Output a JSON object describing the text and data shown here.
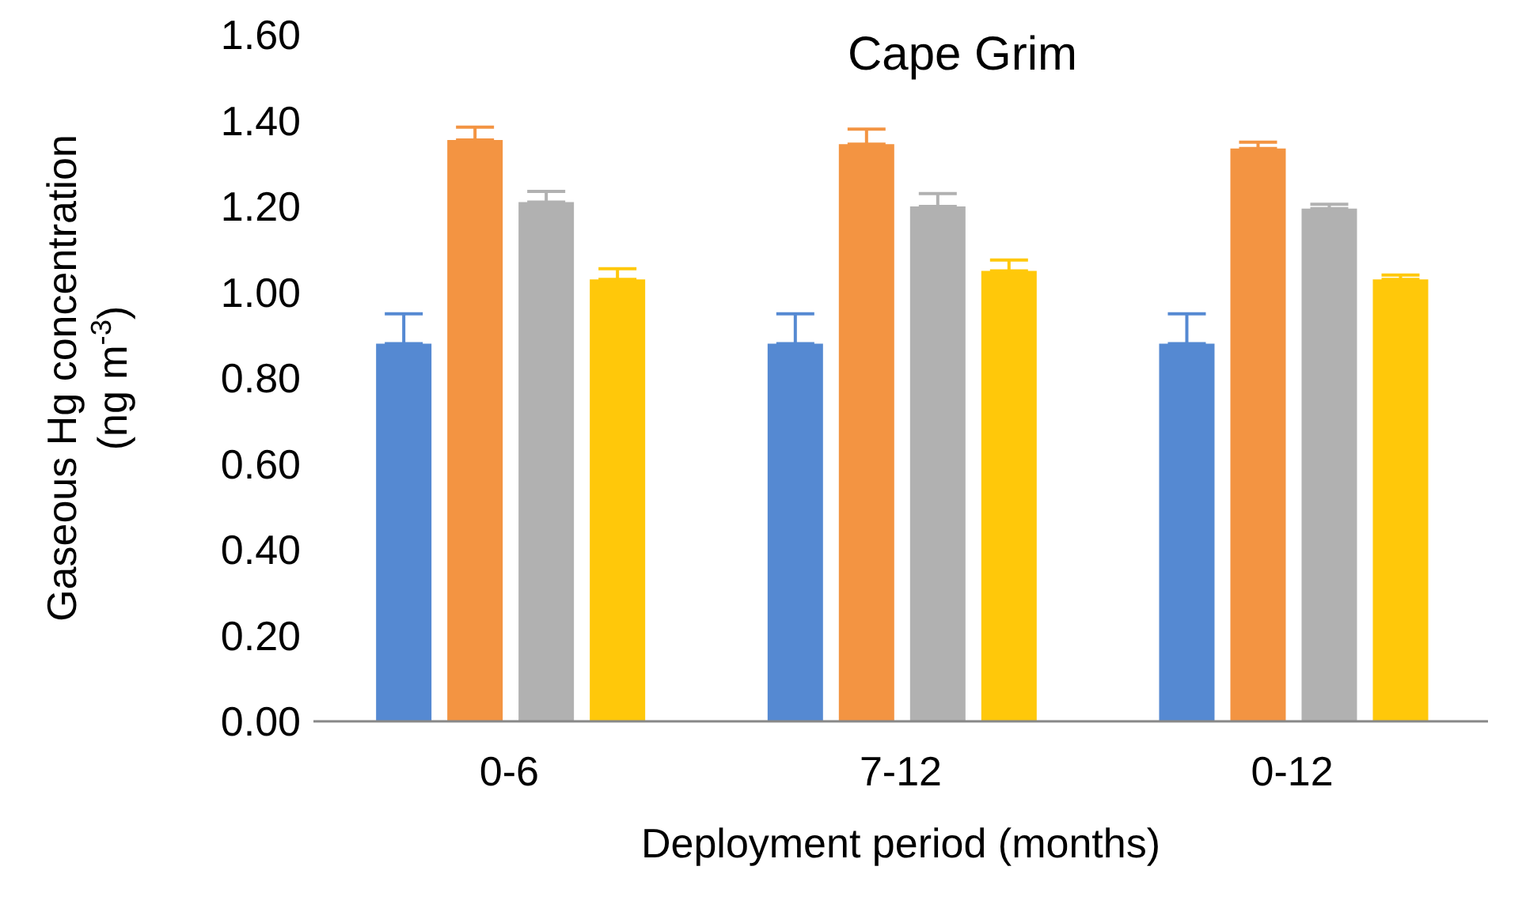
{
  "chart_data": {
    "type": "bar",
    "title": "Cape Grim",
    "xlabel": "Deployment period (months)",
    "ylabel": "Gaseous Hg concentration\n(ng m$^{-3}$)",
    "categories": [
      "0-6",
      "7-12",
      "0-12"
    ],
    "series": [
      {
        "color": "#5589d2",
        "values": [
          0.88,
          0.88,
          0.88
        ],
        "errors": [
          [
            0.88,
            0.95
          ],
          [
            0.88,
            0.95
          ],
          [
            0.88,
            0.95
          ]
        ]
      },
      {
        "color": "#f39442",
        "values": [
          1.355,
          1.345,
          1.335
        ],
        "errors": [
          [
            1.355,
            1.385
          ],
          [
            1.345,
            1.38
          ],
          [
            1.335,
            1.35
          ]
        ]
      },
      {
        "color": "#b1b1b1",
        "values": [
          1.21,
          1.2,
          1.195
        ],
        "errors": [
          [
            1.21,
            1.235
          ],
          [
            1.2,
            1.23
          ],
          [
            1.195,
            1.205
          ]
        ]
      },
      {
        "color": "#ffc80a",
        "values": [
          1.03,
          1.05,
          1.03
        ],
        "errors": [
          [
            1.03,
            1.055
          ],
          [
            1.05,
            1.075
          ],
          [
            1.03,
            1.04
          ]
        ]
      }
    ],
    "ylim": [
      0,
      1.6
    ],
    "yticks": [
      {
        "value": 0,
        "label": "0.00"
      },
      {
        "value": 0.2,
        "label": "0.20"
      },
      {
        "value": 0.4,
        "label": "0.40"
      },
      {
        "value": 0.6,
        "label": "0.60"
      },
      {
        "value": 0.8,
        "label": "0.80"
      },
      {
        "value": 1,
        "label": "1.00"
      },
      {
        "value": 1.2,
        "label": "1.20"
      },
      {
        "value": 1.4,
        "label": "1.40"
      },
      {
        "value": 1.6,
        "label": "1.60"
      }
    ],
    "grid": false,
    "legend": false
  }
}
